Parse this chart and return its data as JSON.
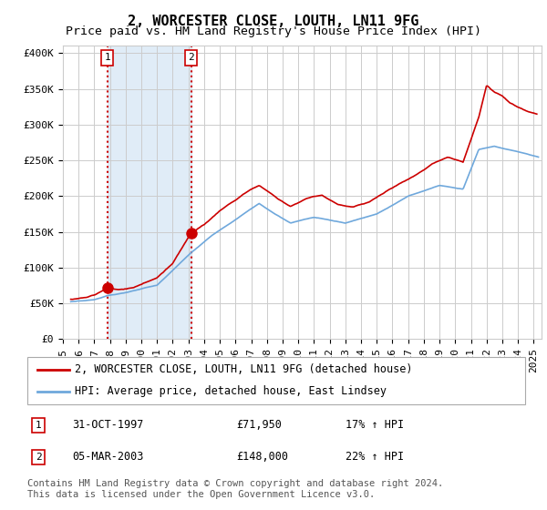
{
  "title": "2, WORCESTER CLOSE, LOUTH, LN11 9FG",
  "subtitle": "Price paid vs. HM Land Registry's House Price Index (HPI)",
  "ylim": [
    0,
    410000
  ],
  "yticks": [
    0,
    50000,
    100000,
    150000,
    200000,
    250000,
    300000,
    350000,
    400000
  ],
  "ytick_labels": [
    "£0",
    "£50K",
    "£100K",
    "£150K",
    "£200K",
    "£250K",
    "£300K",
    "£350K",
    "£400K"
  ],
  "xlim_start": 1995.5,
  "xlim_end": 2025.5,
  "xtick_years": [
    1995,
    1996,
    1997,
    1998,
    1999,
    2000,
    2001,
    2002,
    2003,
    2004,
    2005,
    2006,
    2007,
    2008,
    2009,
    2010,
    2011,
    2012,
    2013,
    2014,
    2015,
    2016,
    2017,
    2018,
    2019,
    2020,
    2021,
    2022,
    2023,
    2024,
    2025
  ],
  "hpi_color": "#6fa8dc",
  "price_color": "#cc0000",
  "marker_color": "#cc0000",
  "vline_color": "#cc0000",
  "shade_color": "#d9e8f5",
  "grid_color": "#cccccc",
  "bg_color": "#ffffff",
  "transaction1": {
    "date_num": 1997.83,
    "price": 71950,
    "label": "1"
  },
  "transaction2": {
    "date_num": 2003.17,
    "price": 148000,
    "label": "2"
  },
  "legend_line1": "2, WORCESTER CLOSE, LOUTH, LN11 9FG (detached house)",
  "legend_line2": "HPI: Average price, detached house, East Lindsey",
  "table_row1": [
    "1",
    "31-OCT-1997",
    "£71,950",
    "17% ↑ HPI"
  ],
  "table_row2": [
    "2",
    "05-MAR-2003",
    "£148,000",
    "22% ↑ HPI"
  ],
  "footnote": "Contains HM Land Registry data © Crown copyright and database right 2024.\nThis data is licensed under the Open Government Licence v3.0.",
  "title_fontsize": 11,
  "subtitle_fontsize": 9.5,
  "tick_fontsize": 8,
  "legend_fontsize": 8.5,
  "table_fontsize": 8.5,
  "footnote_fontsize": 7.5,
  "hpi_knots_x": [
    1995.5,
    1997.0,
    1997.83,
    1999.0,
    2001.0,
    2003.17,
    2004.5,
    2007.5,
    2008.5,
    2009.5,
    2011.0,
    2013.0,
    2015.0,
    2017.0,
    2019.0,
    2020.5,
    2021.5,
    2022.5,
    2023.5,
    2024.5,
    2025.3
  ],
  "hpi_knots_y": [
    52000,
    55000,
    61000,
    65000,
    75000,
    121000,
    145000,
    190000,
    175000,
    162000,
    170000,
    162000,
    175000,
    200000,
    215000,
    210000,
    265000,
    270000,
    265000,
    260000,
    255000
  ],
  "price_knots_x": [
    1995.5,
    1996.5,
    1997.0,
    1997.83,
    1998.5,
    1999.5,
    2001.0,
    2002.0,
    2003.17,
    2004.0,
    2005.0,
    2006.0,
    2007.0,
    2007.5,
    2008.5,
    2009.5,
    2010.5,
    2011.5,
    2012.5,
    2013.5,
    2014.5,
    2015.5,
    2016.5,
    2017.5,
    2018.5,
    2019.5,
    2020.5,
    2021.5,
    2022.0,
    2022.5,
    2023.0,
    2023.5,
    2024.0,
    2024.5,
    2025.2
  ],
  "price_knots_y": [
    55000,
    58000,
    62000,
    71950,
    70000,
    72000,
    85000,
    105000,
    148000,
    160000,
    180000,
    195000,
    210000,
    215000,
    200000,
    185000,
    195000,
    200000,
    188000,
    185000,
    192000,
    205000,
    218000,
    230000,
    245000,
    255000,
    248000,
    310000,
    355000,
    345000,
    340000,
    330000,
    325000,
    320000,
    315000
  ]
}
